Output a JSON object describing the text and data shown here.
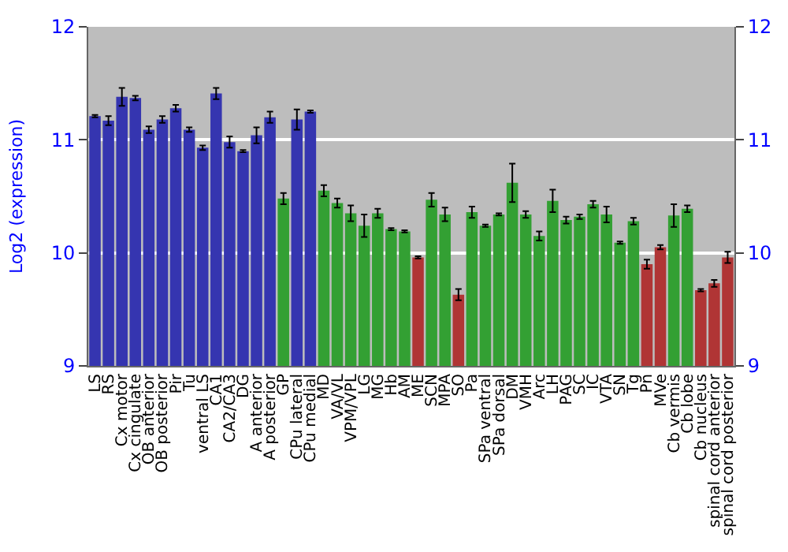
{
  "chart_data": {
    "type": "bar",
    "ylabel": "Log2 (expression)",
    "categories": [
      "LS",
      "RS",
      "Cx motor",
      "Cx cingulate",
      "OB anterior",
      "OB posterior",
      "Pir",
      "Tu",
      "ventral LS",
      "CA1",
      "CA2/CA3",
      "DG",
      "A anterior",
      "A posterior",
      "GP",
      "CPu lateral",
      "CPu medial",
      "MD",
      "VA/VL",
      "VPM/VPL",
      "LG",
      "MG",
      "Hb",
      "AM",
      "ME",
      "SCN",
      "MPA",
      "SO",
      "Pa",
      "SPa ventral",
      "SPa dorsal",
      "DM",
      "VMH",
      "Arc",
      "LH",
      "PAG",
      "SC",
      "IC",
      "VTA",
      "SN",
      "Tg",
      "Pn",
      "MVe",
      "Cb vermis",
      "Cb lobe",
      "Cb nucleus",
      "spinal cord anterior",
      "spinal cord posterior"
    ],
    "values": [
      11.21,
      11.17,
      11.38,
      11.37,
      11.09,
      11.18,
      11.28,
      11.09,
      10.93,
      11.41,
      10.98,
      10.9,
      11.04,
      11.2,
      10.48,
      11.18,
      11.25,
      10.55,
      10.44,
      10.35,
      10.24,
      10.35,
      10.21,
      10.19,
      9.96,
      10.47,
      10.34,
      9.63,
      10.36,
      10.24,
      10.34,
      10.62,
      10.34,
      10.15,
      10.46,
      10.29,
      10.32,
      10.43,
      10.34,
      10.09,
      10.28,
      9.9,
      10.05,
      10.33,
      10.39,
      9.67,
      9.73,
      9.96
    ],
    "errors": [
      0.01,
      0.04,
      0.08,
      0.02,
      0.03,
      0.03,
      0.03,
      0.02,
      0.02,
      0.05,
      0.05,
      0.01,
      0.07,
      0.05,
      0.05,
      0.09,
      0.01,
      0.05,
      0.04,
      0.07,
      0.1,
      0.04,
      0.01,
      0.01,
      0.01,
      0.06,
      0.06,
      0.05,
      0.05,
      0.01,
      0.01,
      0.17,
      0.03,
      0.04,
      0.1,
      0.03,
      0.02,
      0.03,
      0.07,
      0.01,
      0.03,
      0.04,
      0.02,
      0.1,
      0.03,
      0.01,
      0.03,
      0.05
    ],
    "colors": [
      "#3535b0",
      "#3535b0",
      "#3535b0",
      "#3535b0",
      "#3535b0",
      "#3535b0",
      "#3535b0",
      "#3535b0",
      "#3535b0",
      "#3535b0",
      "#3535b0",
      "#3535b0",
      "#3535b0",
      "#3535b0",
      "#33a033",
      "#3535b0",
      "#3535b0",
      "#33a033",
      "#33a033",
      "#33a033",
      "#33a033",
      "#33a033",
      "#33a033",
      "#33a033",
      "#b03535",
      "#33a033",
      "#33a033",
      "#b03535",
      "#33a033",
      "#33a033",
      "#33a033",
      "#33a033",
      "#33a033",
      "#33a033",
      "#33a033",
      "#33a033",
      "#33a033",
      "#33a033",
      "#33a033",
      "#33a033",
      "#33a033",
      "#b03535",
      "#b03535",
      "#33a033",
      "#33a033",
      "#b03535",
      "#b03535",
      "#b03535"
    ],
    "ylim": [
      9,
      12
    ],
    "yticks": [
      9,
      10,
      11,
      12
    ],
    "y2lim": [
      9,
      12
    ],
    "y2ticks": [
      9,
      10,
      11,
      12
    ],
    "grid": "y"
  }
}
